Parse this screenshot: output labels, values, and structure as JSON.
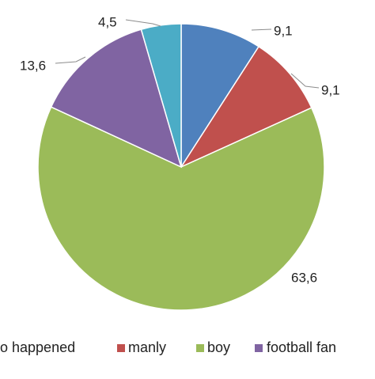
{
  "chart_data": {
    "type": "pie",
    "start": "12 o'clock",
    "direction": "clockwise",
    "slices": [
      {
        "name": "",
        "value": 9.1,
        "label": "9,1",
        "color": "#4f81bd"
      },
      {
        "name": "manly",
        "value": 9.1,
        "label": "9,1",
        "color": "#c0504d"
      },
      {
        "name": "boy",
        "value": 63.6,
        "label": "63,6",
        "color": "#9bbb59"
      },
      {
        "name": "football fan",
        "value": 13.6,
        "label": "13,6",
        "color": "#8064a2"
      },
      {
        "name": "",
        "value": 4.5,
        "label": "4,5",
        "color": "#4bacc6"
      }
    ],
    "legend": {
      "placement": "bottom",
      "items": [
        {
          "label": "o happened",
          "color": "#4bacc6"
        },
        {
          "label": "manly",
          "color": "#c0504d"
        },
        {
          "label": "boy",
          "color": "#9bbb59"
        },
        {
          "label": "football fan",
          "color": "#8064a2"
        }
      ]
    }
  }
}
